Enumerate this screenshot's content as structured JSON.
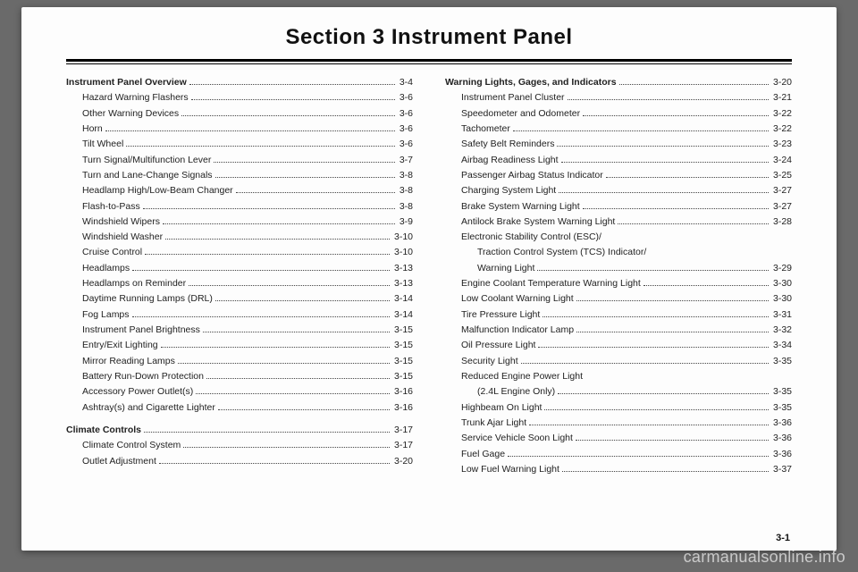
{
  "title": "Section 3    Instrument Panel",
  "footer_page": "3-1",
  "watermark": "carmanualsonline.info",
  "left": [
    {
      "t": "main",
      "label": "Instrument Panel Overview",
      "pg": "3-4"
    },
    {
      "t": "sub",
      "label": "Hazard Warning Flashers",
      "pg": "3-6"
    },
    {
      "t": "sub",
      "label": "Other Warning Devices",
      "pg": "3-6"
    },
    {
      "t": "sub",
      "label": "Horn",
      "pg": "3-6"
    },
    {
      "t": "sub",
      "label": "Tilt Wheel",
      "pg": "3-6"
    },
    {
      "t": "sub",
      "label": "Turn Signal/Multifunction Lever",
      "pg": "3-7"
    },
    {
      "t": "sub",
      "label": "Turn and Lane-Change Signals",
      "pg": "3-8"
    },
    {
      "t": "sub",
      "label": "Headlamp High/Low-Beam Changer",
      "pg": "3-8"
    },
    {
      "t": "sub",
      "label": "Flash-to-Pass",
      "pg": "3-8"
    },
    {
      "t": "sub",
      "label": "Windshield Wipers",
      "pg": "3-9"
    },
    {
      "t": "sub",
      "label": "Windshield Washer",
      "pg": "3-10"
    },
    {
      "t": "sub",
      "label": "Cruise Control",
      "pg": "3-10"
    },
    {
      "t": "sub",
      "label": "Headlamps",
      "pg": "3-13"
    },
    {
      "t": "sub",
      "label": "Headlamps on Reminder",
      "pg": "3-13"
    },
    {
      "t": "sub",
      "label": "Daytime Running Lamps (DRL)",
      "pg": "3-14"
    },
    {
      "t": "sub",
      "label": "Fog Lamps",
      "pg": "3-14"
    },
    {
      "t": "sub",
      "label": "Instrument Panel Brightness",
      "pg": "3-15"
    },
    {
      "t": "sub",
      "label": "Entry/Exit Lighting",
      "pg": "3-15"
    },
    {
      "t": "sub",
      "label": "Mirror Reading Lamps",
      "pg": "3-15"
    },
    {
      "t": "sub",
      "label": "Battery Run-Down Protection",
      "pg": "3-15"
    },
    {
      "t": "sub",
      "label": "Accessory Power Outlet(s)",
      "pg": "3-16"
    },
    {
      "t": "sub",
      "label": "Ashtray(s) and Cigarette Lighter",
      "pg": "3-16"
    },
    {
      "t": "gap"
    },
    {
      "t": "main",
      "label": "Climate Controls",
      "pg": "3-17"
    },
    {
      "t": "sub",
      "label": "Climate Control System",
      "pg": "3-17"
    },
    {
      "t": "sub",
      "label": "Outlet Adjustment",
      "pg": "3-20"
    }
  ],
  "right": [
    {
      "t": "main",
      "label": "Warning Lights, Gages, and Indicators",
      "pg": "3-20"
    },
    {
      "t": "sub",
      "label": "Instrument Panel Cluster",
      "pg": "3-21"
    },
    {
      "t": "sub",
      "label": "Speedometer and Odometer",
      "pg": "3-22"
    },
    {
      "t": "sub",
      "label": "Tachometer",
      "pg": "3-22"
    },
    {
      "t": "sub",
      "label": "Safety Belt Reminders",
      "pg": "3-23"
    },
    {
      "t": "sub",
      "label": "Airbag Readiness Light",
      "pg": "3-24"
    },
    {
      "t": "sub",
      "label": "Passenger Airbag Status Indicator",
      "pg": "3-25"
    },
    {
      "t": "sub",
      "label": "Charging System Light",
      "pg": "3-27"
    },
    {
      "t": "sub",
      "label": "Brake System Warning Light",
      "pg": "3-27"
    },
    {
      "t": "sub",
      "label": "Antilock Brake System Warning Light",
      "pg": "3-28"
    },
    {
      "t": "sub-nopg",
      "label": "Electronic Stability Control (ESC)/"
    },
    {
      "t": "sub2-nopg",
      "label": "Traction Control System (TCS) Indicator/"
    },
    {
      "t": "sub2",
      "label": "Warning Light",
      "pg": "3-29"
    },
    {
      "t": "sub",
      "label": "Engine Coolant Temperature Warning Light",
      "pg": "3-30"
    },
    {
      "t": "sub",
      "label": "Low Coolant Warning Light",
      "pg": "3-30"
    },
    {
      "t": "sub",
      "label": "Tire Pressure Light",
      "pg": "3-31"
    },
    {
      "t": "sub",
      "label": "Malfunction Indicator Lamp",
      "pg": "3-32"
    },
    {
      "t": "sub",
      "label": "Oil Pressure Light",
      "pg": "3-34"
    },
    {
      "t": "sub",
      "label": "Security Light",
      "pg": "3-35"
    },
    {
      "t": "sub-nopg",
      "label": "Reduced Engine Power Light"
    },
    {
      "t": "sub2",
      "label": "(2.4L Engine Only)",
      "pg": "3-35"
    },
    {
      "t": "sub",
      "label": "Highbeam On Light",
      "pg": "3-35"
    },
    {
      "t": "sub",
      "label": "Trunk Ajar Light",
      "pg": "3-36"
    },
    {
      "t": "sub",
      "label": "Service Vehicle Soon Light",
      "pg": "3-36"
    },
    {
      "t": "sub",
      "label": "Fuel Gage",
      "pg": "3-36"
    },
    {
      "t": "sub",
      "label": "Low Fuel Warning Light",
      "pg": "3-37"
    }
  ]
}
